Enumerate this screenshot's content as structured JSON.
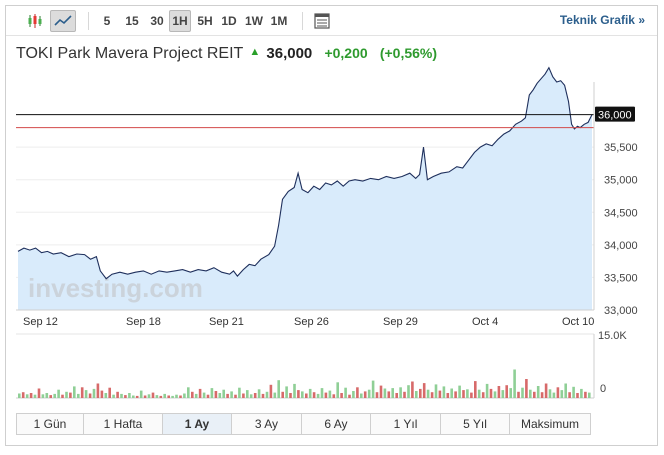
{
  "toolbar": {
    "intervals": [
      {
        "label": "5",
        "selected": false
      },
      {
        "label": "15",
        "selected": false
      },
      {
        "label": "30",
        "selected": false
      },
      {
        "label": "1H",
        "selected": true
      },
      {
        "label": "5H",
        "selected": false
      },
      {
        "label": "1D",
        "selected": false
      },
      {
        "label": "1W",
        "selected": false
      },
      {
        "label": "1M",
        "selected": false
      }
    ],
    "technical_chart_link": "Teknik Grafik »"
  },
  "header": {
    "instrument_name": "TOKI Park Mavera Project REIT",
    "direction": "up",
    "price": "36,000",
    "change": "+0,200",
    "change_pct": "(+0,56%)"
  },
  "colors": {
    "line": "#1e2f5c",
    "area": "#d9ebfb",
    "previous_close_line": "#d24a4a",
    "current_price_line": "#111111",
    "volume_up": "#8fcf96",
    "volume_down": "#d76a6a"
  },
  "watermark": "investing.com",
  "chart_data": {
    "type": "area",
    "price_axis": {
      "ticks": [
        "36,000",
        "35,500",
        "35,000",
        "34,500",
        "34,000",
        "33,500",
        "33,000"
      ],
      "range": [
        33.0,
        36.5
      ],
      "current_price_label": "36,000"
    },
    "previous_close": 35.8,
    "date_labels": [
      "Sep 12",
      "Sep 18",
      "Sep 21",
      "Sep 26",
      "Sep 29",
      "Oct 4",
      "Oct 10"
    ],
    "price_series": [
      [
        0,
        33.9
      ],
      [
        1.5,
        33.95
      ],
      [
        3,
        33.92
      ],
      [
        4.5,
        33.95
      ],
      [
        6,
        33.88
      ],
      [
        7.5,
        33.9
      ],
      [
        9,
        33.86
      ],
      [
        11,
        33.88
      ],
      [
        13,
        33.82
      ],
      [
        15,
        33.86
      ],
      [
        17,
        33.85
      ],
      [
        18.5,
        33.78
      ],
      [
        20,
        33.82
      ],
      [
        21,
        33.6
      ],
      [
        22.5,
        33.48
      ],
      [
        24,
        33.55
      ],
      [
        26,
        33.58
      ],
      [
        28,
        33.55
      ],
      [
        30,
        33.58
      ],
      [
        32,
        33.6
      ],
      [
        34,
        33.55
      ],
      [
        36,
        33.6
      ],
      [
        38,
        33.58
      ],
      [
        40,
        33.6
      ],
      [
        42,
        33.62
      ],
      [
        44,
        33.58
      ],
      [
        46,
        33.62
      ],
      [
        48,
        33.6
      ],
      [
        50,
        33.65
      ],
      [
        52,
        33.58
      ],
      [
        54,
        33.55
      ],
      [
        55,
        33.6
      ],
      [
        56,
        33.52
      ],
      [
        57.5,
        33.62
      ],
      [
        59,
        33.7
      ],
      [
        60.5,
        33.68
      ],
      [
        62,
        33.78
      ],
      [
        64,
        33.85
      ],
      [
        65.5,
        33.98
      ],
      [
        66.5,
        34.3
      ],
      [
        67.5,
        34.7
      ],
      [
        69,
        34.82
      ],
      [
        70.5,
        34.88
      ],
      [
        71.5,
        35.1
      ],
      [
        72.5,
        34.85
      ],
      [
        74,
        34.8
      ],
      [
        75.5,
        34.9
      ],
      [
        77,
        34.85
      ],
      [
        78.5,
        34.95
      ],
      [
        80,
        34.92
      ],
      [
        81.5,
        34.98
      ],
      [
        83,
        34.9
      ],
      [
        84.5,
        34.98
      ],
      [
        86,
        35.0
      ],
      [
        88,
        34.98
      ],
      [
        90,
        35.02
      ],
      [
        92,
        35.0
      ],
      [
        94,
        35.05
      ],
      [
        96,
        35.02
      ],
      [
        98,
        35.05
      ],
      [
        100,
        35.1
      ],
      [
        101.5,
        35.02
      ],
      [
        102.5,
        35.08
      ],
      [
        103.5,
        35.5
      ],
      [
        104.5,
        35.0
      ],
      [
        106,
        35.05
      ],
      [
        108,
        35.1
      ],
      [
        110,
        35.12
      ],
      [
        112,
        35.2
      ],
      [
        113.5,
        35.18
      ],
      [
        115,
        35.3
      ],
      [
        116.5,
        35.42
      ],
      [
        118,
        35.5
      ],
      [
        119.5,
        35.55
      ],
      [
        121,
        35.52
      ],
      [
        122.5,
        35.62
      ],
      [
        124,
        35.7
      ],
      [
        125.5,
        35.75
      ],
      [
        127,
        35.85
      ],
      [
        128.5,
        35.9
      ],
      [
        129.5,
        35.95
      ],
      [
        130.5,
        36.3
      ],
      [
        131.5,
        36.38
      ],
      [
        132.5,
        36.48
      ],
      [
        133.5,
        36.55
      ],
      [
        134.5,
        36.62
      ],
      [
        135.5,
        36.72
      ],
      [
        136.5,
        36.58
      ],
      [
        137.5,
        36.5
      ],
      [
        138.5,
        36.52
      ],
      [
        139.5,
        36.45
      ],
      [
        140.5,
        36.2
      ],
      [
        141.3,
        35.85
      ],
      [
        142,
        35.78
      ],
      [
        142.8,
        35.82
      ],
      [
        143.5,
        35.8
      ],
      [
        144.5,
        35.85
      ],
      [
        145.5,
        35.88
      ],
      [
        146.5,
        36.0
      ]
    ],
    "volume_axis": {
      "max_label": "15.0K",
      "zero_label": "0"
    },
    "volume_bars": [
      [
        1,
        1.1,
        "up"
      ],
      [
        2,
        1.4,
        "down"
      ],
      [
        3,
        0.9,
        "up"
      ],
      [
        4,
        1.2,
        "down"
      ],
      [
        5,
        0.8,
        "up"
      ],
      [
        6,
        2.3,
        "down"
      ],
      [
        7,
        0.9,
        "up"
      ],
      [
        8,
        1.2,
        "up"
      ],
      [
        9,
        0.7,
        "down"
      ],
      [
        10,
        1.0,
        "up"
      ],
      [
        11,
        2.0,
        "up"
      ],
      [
        12,
        0.8,
        "down"
      ],
      [
        13,
        1.5,
        "up"
      ],
      [
        14,
        1.3,
        "down"
      ],
      [
        15,
        2.8,
        "up"
      ],
      [
        16,
        1.0,
        "up"
      ],
      [
        17,
        2.6,
        "down"
      ],
      [
        18,
        1.9,
        "up"
      ],
      [
        19,
        1.1,
        "down"
      ],
      [
        20,
        2.2,
        "up"
      ],
      [
        21,
        3.5,
        "down"
      ],
      [
        22,
        1.8,
        "down"
      ],
      [
        23,
        1.2,
        "up"
      ],
      [
        24,
        2.5,
        "down"
      ],
      [
        25,
        0.8,
        "up"
      ],
      [
        26,
        1.5,
        "down"
      ],
      [
        27,
        1.0,
        "up"
      ],
      [
        28,
        0.7,
        "down"
      ],
      [
        29,
        1.2,
        "up"
      ],
      [
        30,
        0.6,
        "up"
      ],
      [
        31,
        0.5,
        "down"
      ],
      [
        32,
        1.8,
        "up"
      ],
      [
        33,
        0.6,
        "down"
      ],
      [
        34,
        0.9,
        "up"
      ],
      [
        35,
        1.3,
        "down"
      ],
      [
        36,
        0.7,
        "up"
      ],
      [
        37,
        0.5,
        "down"
      ],
      [
        38,
        1.0,
        "up"
      ],
      [
        39,
        0.6,
        "down"
      ],
      [
        40,
        0.5,
        "up"
      ],
      [
        41,
        0.8,
        "up"
      ],
      [
        42,
        0.6,
        "down"
      ],
      [
        43,
        1.1,
        "up"
      ],
      [
        44,
        2.6,
        "up"
      ],
      [
        45,
        1.5,
        "down"
      ],
      [
        46,
        1.0,
        "up"
      ],
      [
        47,
        2.2,
        "down"
      ],
      [
        48,
        1.3,
        "up"
      ],
      [
        49,
        0.8,
        "down"
      ],
      [
        50,
        2.4,
        "up"
      ],
      [
        51,
        1.7,
        "down"
      ],
      [
        52,
        1.2,
        "up"
      ],
      [
        53,
        2.0,
        "up"
      ],
      [
        54,
        1.0,
        "down"
      ],
      [
        55,
        1.6,
        "up"
      ],
      [
        56,
        0.8,
        "down"
      ],
      [
        57,
        2.5,
        "up"
      ],
      [
        58,
        1.1,
        "down"
      ],
      [
        59,
        1.9,
        "up"
      ],
      [
        60,
        0.9,
        "up"
      ],
      [
        61,
        1.2,
        "down"
      ],
      [
        62,
        2.1,
        "up"
      ],
      [
        63,
        1.0,
        "down"
      ],
      [
        64,
        1.5,
        "up"
      ],
      [
        65,
        3.2,
        "down"
      ],
      [
        66,
        1.3,
        "up"
      ],
      [
        67,
        4.3,
        "up"
      ],
      [
        68,
        1.5,
        "down"
      ],
      [
        69,
        2.8,
        "up"
      ],
      [
        70,
        1.2,
        "down"
      ],
      [
        71,
        3.4,
        "up"
      ],
      [
        72,
        1.9,
        "down"
      ],
      [
        73,
        1.6,
        "up"
      ],
      [
        74,
        1.1,
        "down"
      ],
      [
        75,
        2.2,
        "up"
      ],
      [
        76,
        1.4,
        "down"
      ],
      [
        77,
        1.0,
        "up"
      ],
      [
        78,
        2.4,
        "up"
      ],
      [
        79,
        1.3,
        "down"
      ],
      [
        80,
        1.8,
        "up"
      ],
      [
        81,
        0.9,
        "down"
      ],
      [
        82,
        3.8,
        "up"
      ],
      [
        83,
        1.2,
        "down"
      ],
      [
        84,
        2.5,
        "up"
      ],
      [
        85,
        0.8,
        "down"
      ],
      [
        86,
        1.7,
        "up"
      ],
      [
        87,
        2.6,
        "down"
      ],
      [
        88,
        1.1,
        "up"
      ],
      [
        89,
        1.6,
        "down"
      ],
      [
        90,
        2.0,
        "up"
      ],
      [
        91,
        4.2,
        "up"
      ],
      [
        92,
        1.4,
        "down"
      ],
      [
        93,
        3.0,
        "down"
      ],
      [
        94,
        2.3,
        "up"
      ],
      [
        95,
        1.6,
        "down"
      ],
      [
        96,
        2.4,
        "up"
      ],
      [
        97,
        1.2,
        "down"
      ],
      [
        98,
        2.6,
        "up"
      ],
      [
        99,
        1.5,
        "down"
      ],
      [
        100,
        3.1,
        "up"
      ],
      [
        101,
        4.0,
        "down"
      ],
      [
        102,
        1.7,
        "up"
      ],
      [
        103,
        2.2,
        "down"
      ],
      [
        104,
        3.6,
        "down"
      ],
      [
        105,
        2.0,
        "up"
      ],
      [
        106,
        1.4,
        "down"
      ],
      [
        107,
        3.3,
        "up"
      ],
      [
        108,
        1.8,
        "down"
      ],
      [
        109,
        2.8,
        "up"
      ],
      [
        110,
        1.2,
        "down"
      ],
      [
        111,
        2.3,
        "up"
      ],
      [
        112,
        1.6,
        "down"
      ],
      [
        113,
        3.0,
        "up"
      ],
      [
        114,
        1.9,
        "down"
      ],
      [
        115,
        2.1,
        "up"
      ],
      [
        116,
        1.3,
        "down"
      ],
      [
        117,
        4.1,
        "down"
      ],
      [
        118,
        2.0,
        "up"
      ],
      [
        119,
        1.4,
        "down"
      ],
      [
        120,
        3.4,
        "up"
      ],
      [
        121,
        2.2,
        "down"
      ],
      [
        122,
        1.6,
        "up"
      ],
      [
        123,
        2.9,
        "down"
      ],
      [
        124,
        1.9,
        "up"
      ],
      [
        125,
        3.1,
        "down"
      ],
      [
        126,
        2.4,
        "up"
      ],
      [
        127,
        6.9,
        "up"
      ],
      [
        128,
        1.5,
        "down"
      ],
      [
        129,
        2.5,
        "up"
      ],
      [
        130,
        4.6,
        "down"
      ],
      [
        131,
        2.0,
        "up"
      ],
      [
        132,
        1.5,
        "down"
      ],
      [
        133,
        2.9,
        "up"
      ],
      [
        134,
        1.4,
        "down"
      ],
      [
        135,
        3.5,
        "down"
      ],
      [
        136,
        2.1,
        "up"
      ],
      [
        137,
        1.3,
        "up"
      ],
      [
        138,
        2.6,
        "down"
      ],
      [
        139,
        1.9,
        "up"
      ],
      [
        140,
        3.5,
        "up"
      ],
      [
        141,
        1.4,
        "down"
      ],
      [
        142,
        2.7,
        "up"
      ],
      [
        143,
        1.2,
        "down"
      ],
      [
        144,
        2.2,
        "up"
      ],
      [
        145,
        1.5,
        "down"
      ],
      [
        146,
        1.3,
        "up"
      ]
    ]
  },
  "range_tabs": [
    {
      "label": "1 Gün",
      "selected": false
    },
    {
      "label": "1 Hafta",
      "selected": false
    },
    {
      "label": "1 Ay",
      "selected": true
    },
    {
      "label": "3 Ay",
      "selected": false
    },
    {
      "label": "6 Ay",
      "selected": false
    },
    {
      "label": "1 Yıl",
      "selected": false
    },
    {
      "label": "5 Yıl",
      "selected": false
    },
    {
      "label": "Maksimum",
      "selected": false
    }
  ]
}
